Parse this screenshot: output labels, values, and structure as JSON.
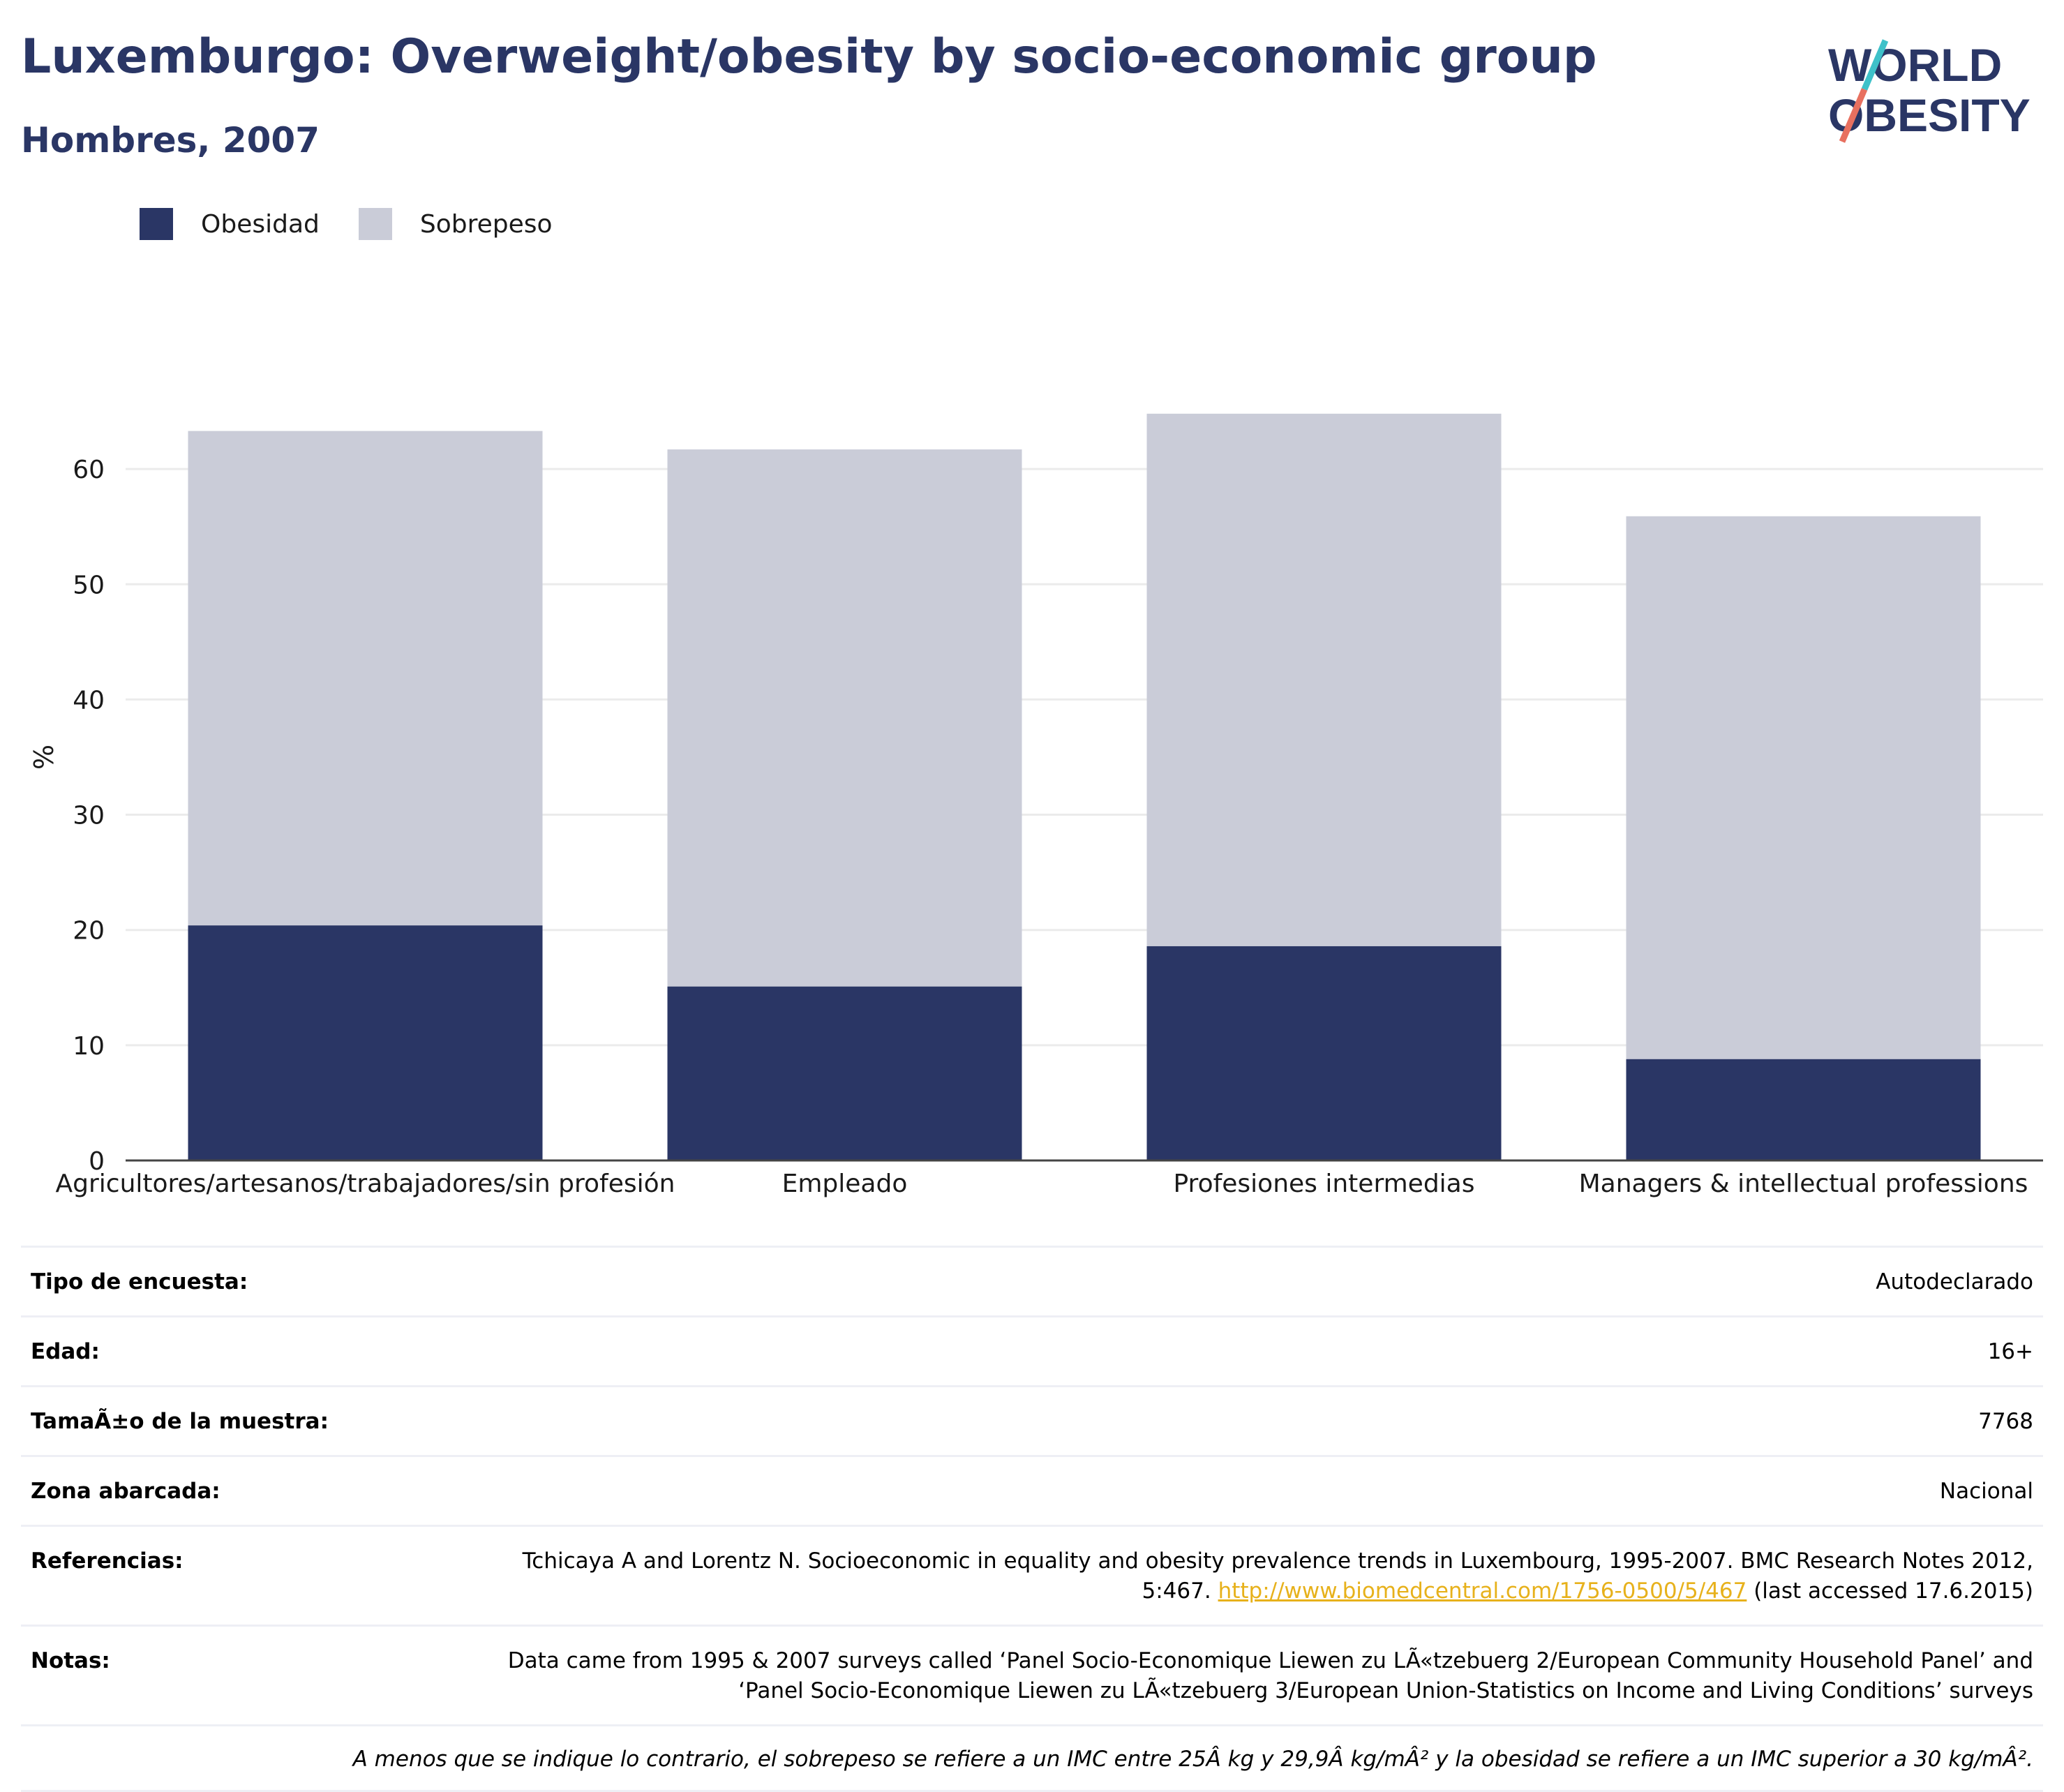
{
  "header": {
    "title": "Luxemburgo: Overweight/obesity by socio-economic group",
    "subtitle": "Hombres, 2007"
  },
  "logo": {
    "line1": "WORLD",
    "line2": "OBESITY"
  },
  "colors": {
    "obesity": "#2a3665",
    "overweight": "#caccd8",
    "title": "#2a3665",
    "link": "#e7b11b",
    "logo_teal": "#3ec1c9",
    "logo_coral": "#e8705f"
  },
  "chart_data": {
    "type": "bar",
    "stacked": true,
    "title": "Luxemburgo: Overweight/obesity by socio-economic group",
    "subtitle": "Hombres, 2007",
    "ylabel": "%",
    "xlabel": "",
    "ylim": [
      0,
      68
    ],
    "yticks": [
      0,
      10,
      20,
      30,
      40,
      50,
      60
    ],
    "grid": true,
    "legend_position": "top-left",
    "categories": [
      "Agricultores/artesanos/trabajadores/sin profesión",
      "Empleado",
      "Profesiones intermedias",
      "Managers & intellectual professions"
    ],
    "series": [
      {
        "name": "Obesidad",
        "values": [
          20.4,
          15.1,
          18.6,
          8.8
        ]
      },
      {
        "name": "Sobrepeso",
        "values": [
          42.9,
          46.6,
          46.2,
          47.1
        ]
      }
    ]
  },
  "meta": [
    {
      "key": "Tipo de encuesta:",
      "value": "Autodeclarado"
    },
    {
      "key": "Edad:",
      "value": "16+"
    },
    {
      "key": "TamaÃ±o de la muestra:",
      "value": "7768"
    },
    {
      "key": "Zona abarcada:",
      "value": "Nacional"
    }
  ],
  "references": {
    "key": "Referencias:",
    "text_before": "Tchicaya A and Lorentz N. Socioeconomic in equality and obesity prevalence trends in Luxembourg, 1995-2007. BMC Research Notes 2012, 5:467. ",
    "link": "http://www.biomedcentral.com/1756-0500/5/467",
    "text_after": " (last accessed 17.6.2015)"
  },
  "notes": {
    "key": "Notas:",
    "value": "Data came from 1995 & 2007 surveys called ‘Panel Socio-Economique Liewen zu LÃ«tzebuerg 2/European Community Household Panel’ and ‘Panel Socio-Economique Liewen zu LÃ«tzebuerg 3/European Union-Statistics on Income and Living Conditions’ surveys"
  },
  "footnote": "A menos que se indique lo contrario, el sobrepeso se refiere a un IMC entre 25Â kg y 29,9Â kg/mÂ² y la obesidad se refiere a un IMC superior a 30 kg/mÂ²."
}
